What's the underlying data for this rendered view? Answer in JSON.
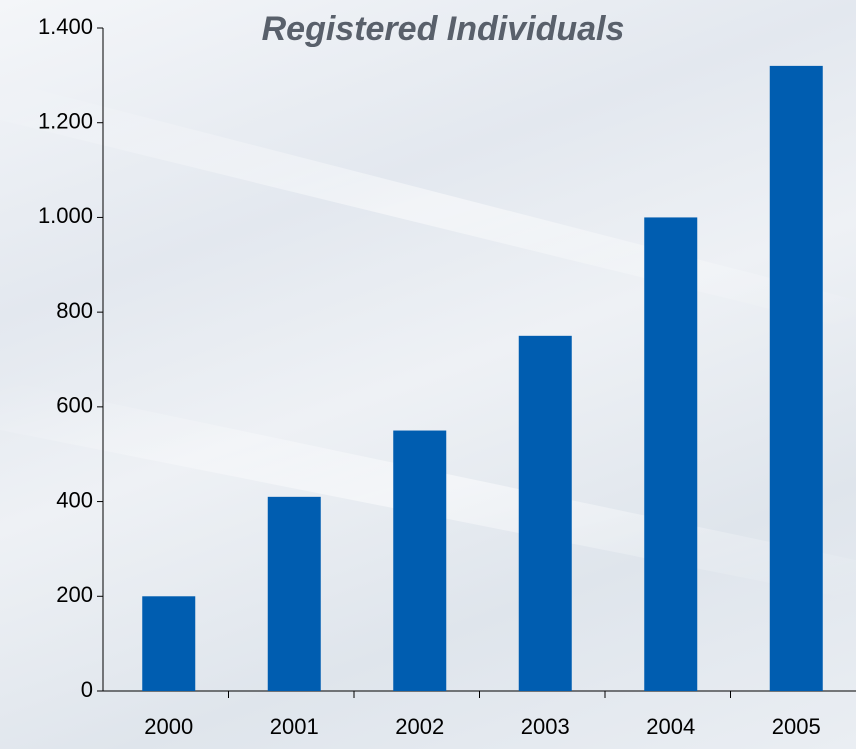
{
  "chart_data": {
    "type": "bar",
    "title": "Registered Individuals",
    "categories": [
      "2000",
      "2001",
      "2002",
      "2003",
      "2004",
      "2005"
    ],
    "values": [
      200,
      410,
      550,
      750,
      1000,
      1320
    ],
    "color": "#005db0",
    "ylim": [
      0,
      1400
    ],
    "yticks": [
      0,
      200,
      400,
      600,
      800,
      {
        "value": 1000,
        "label": "1.000"
      },
      {
        "value": 1200,
        "label": "1.200"
      },
      {
        "value": 1400,
        "label": "1.400"
      }
    ],
    "grid": false
  }
}
